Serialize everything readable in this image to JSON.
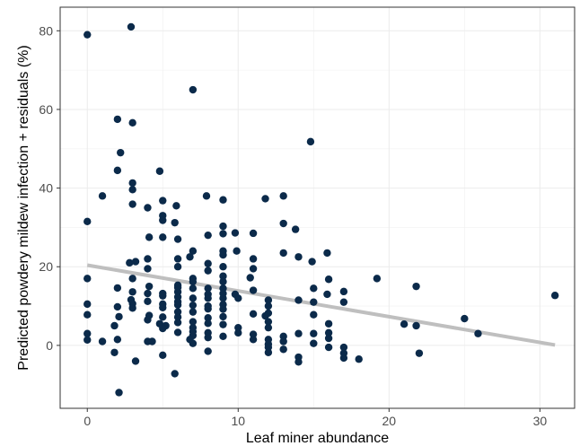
{
  "chart_data": {
    "type": "scatter",
    "xlabel": "Leaf miner abundance",
    "ylabel": "Predicted powdery mildew infection + residuals (%)",
    "xlim": [
      -1.8,
      32.3
    ],
    "ylim": [
      -16,
      86
    ],
    "xticks": [
      0,
      10,
      20,
      30
    ],
    "yticks": [
      0,
      20,
      40,
      60,
      80
    ],
    "grid": true,
    "point_color": "#0b2a4a",
    "line_color": "#bfbfbf",
    "trend_line": {
      "x": [
        0,
        31
      ],
      "y": [
        20.4,
        0.1
      ]
    },
    "points": [
      [
        0,
        79
      ],
      [
        0,
        31.5
      ],
      [
        0,
        17
      ],
      [
        0,
        10.5
      ],
      [
        0,
        7.8
      ],
      [
        0,
        3
      ],
      [
        0,
        1.4
      ],
      [
        1,
        38
      ],
      [
        1,
        1
      ],
      [
        1.8,
        5
      ],
      [
        1.8,
        -1.8
      ],
      [
        2,
        1.5
      ],
      [
        2,
        57.5
      ],
      [
        2,
        44.5
      ],
      [
        2,
        14.6
      ],
      [
        2,
        9.8
      ],
      [
        2.1,
        -12
      ],
      [
        2.2,
        49
      ],
      [
        2.1,
        7.3
      ],
      [
        2.9,
        81
      ],
      [
        3,
        56.6
      ],
      [
        3,
        41.3
      ],
      [
        3,
        39.6
      ],
      [
        3,
        35.9
      ],
      [
        2.8,
        21
      ],
      [
        3,
        17
      ],
      [
        3.2,
        21.3
      ],
      [
        3,
        13.6
      ],
      [
        2.9,
        11.6
      ],
      [
        3,
        10.6
      ],
      [
        3,
        9.5
      ],
      [
        3.2,
        -4
      ],
      [
        4,
        35
      ],
      [
        4.1,
        27.5
      ],
      [
        4,
        22
      ],
      [
        4,
        19.5
      ],
      [
        4.1,
        15
      ],
      [
        4,
        13.2
      ],
      [
        4,
        11.2
      ],
      [
        4.1,
        7.6
      ],
      [
        4,
        6.5
      ],
      [
        4,
        1
      ],
      [
        4.3,
        1
      ],
      [
        4.8,
        44.3
      ],
      [
        5,
        36.8
      ],
      [
        5,
        33
      ],
      [
        5,
        31.8
      ],
      [
        5,
        27.5
      ],
      [
        5,
        13.2
      ],
      [
        5,
        12.6
      ],
      [
        5,
        10.5
      ],
      [
        5,
        9.6
      ],
      [
        5,
        7.2
      ],
      [
        4.8,
        5.5
      ],
      [
        5.2,
        5
      ],
      [
        5,
        4.3
      ],
      [
        5,
        -2.5
      ],
      [
        5.9,
        35.5
      ],
      [
        5.8,
        31.2
      ],
      [
        6,
        27
      ],
      [
        6,
        22
      ],
      [
        6,
        20
      ],
      [
        6,
        15.3
      ],
      [
        6,
        14.7
      ],
      [
        6,
        13.6
      ],
      [
        6,
        12.3
      ],
      [
        6,
        11.1
      ],
      [
        6,
        10.3
      ],
      [
        6,
        8.5
      ],
      [
        6,
        7.2
      ],
      [
        6,
        5.8
      ],
      [
        6,
        3.3
      ],
      [
        5.8,
        -7.2
      ],
      [
        7,
        65
      ],
      [
        6.8,
        22.5
      ],
      [
        7,
        24
      ],
      [
        7,
        17
      ],
      [
        7,
        16.2
      ],
      [
        7,
        14.5
      ],
      [
        7,
        12
      ],
      [
        7,
        10.2
      ],
      [
        7,
        8.5
      ],
      [
        7,
        6
      ],
      [
        7,
        4.5
      ],
      [
        7,
        3.5
      ],
      [
        7,
        2.5
      ],
      [
        6.8,
        1.5
      ],
      [
        7,
        0.5
      ],
      [
        7.9,
        38
      ],
      [
        8,
        28
      ],
      [
        8,
        20.8
      ],
      [
        8,
        19
      ],
      [
        8,
        14.5
      ],
      [
        8,
        13
      ],
      [
        8,
        12
      ],
      [
        8,
        10
      ],
      [
        8,
        9.3
      ],
      [
        8,
        7
      ],
      [
        8,
        5.6
      ],
      [
        8,
        3.2
      ],
      [
        8,
        2
      ],
      [
        8,
        -1.5
      ],
      [
        9,
        37
      ],
      [
        9,
        30.3
      ],
      [
        9,
        28.4
      ],
      [
        9,
        24
      ],
      [
        9,
        23
      ],
      [
        9,
        20
      ],
      [
        9,
        17.6
      ],
      [
        9,
        16.2
      ],
      [
        9,
        14.5
      ],
      [
        9,
        13.2
      ],
      [
        9,
        12
      ],
      [
        9,
        10.4
      ],
      [
        9,
        9.2
      ],
      [
        9,
        7.3
      ],
      [
        9,
        5.3
      ],
      [
        9,
        2.3
      ],
      [
        9.8,
        28.6
      ],
      [
        9.9,
        24
      ],
      [
        9.8,
        13
      ],
      [
        10,
        12
      ],
      [
        10,
        4.5
      ],
      [
        10,
        3.2
      ],
      [
        11,
        28.5
      ],
      [
        11,
        22
      ],
      [
        11,
        19.5
      ],
      [
        10.8,
        17.2
      ],
      [
        11,
        14
      ],
      [
        11,
        8
      ],
      [
        11,
        2.8
      ],
      [
        11,
        1.5
      ],
      [
        11.8,
        37.3
      ],
      [
        12,
        11.5
      ],
      [
        12,
        10
      ],
      [
        12,
        8.2
      ],
      [
        11.8,
        7.5
      ],
      [
        12,
        6
      ],
      [
        12,
        4.5
      ],
      [
        12,
        1.5
      ],
      [
        12,
        0.3
      ],
      [
        12,
        -0.5
      ],
      [
        12,
        -1.8
      ],
      [
        13,
        38
      ],
      [
        13,
        31
      ],
      [
        13,
        23.5
      ],
      [
        13,
        2.3
      ],
      [
        13,
        1
      ],
      [
        13,
        -1
      ],
      [
        13.8,
        29.5
      ],
      [
        14,
        22.5
      ],
      [
        14,
        11.5
      ],
      [
        14,
        3
      ],
      [
        14,
        -3
      ],
      [
        14,
        -4.2
      ],
      [
        14.8,
        51.8
      ],
      [
        14.9,
        21.3
      ],
      [
        15,
        14.5
      ],
      [
        15,
        11
      ],
      [
        15,
        7.8
      ],
      [
        15,
        3
      ],
      [
        15,
        0.5
      ],
      [
        15.9,
        23.5
      ],
      [
        16,
        16.8
      ],
      [
        15.9,
        13
      ],
      [
        16,
        5.5
      ],
      [
        16,
        3.2
      ],
      [
        16,
        1.8
      ],
      [
        16,
        -0.5
      ],
      [
        17,
        13.7
      ],
      [
        17,
        11
      ],
      [
        17,
        -0.5
      ],
      [
        17,
        -2
      ],
      [
        17,
        -3.2
      ],
      [
        18,
        -3.5
      ],
      [
        19.2,
        17
      ],
      [
        21,
        5.4
      ],
      [
        21.8,
        15
      ],
      [
        21.8,
        5
      ],
      [
        22,
        -2
      ],
      [
        25,
        6.8
      ],
      [
        25.9,
        3
      ],
      [
        31,
        12.7
      ]
    ]
  }
}
